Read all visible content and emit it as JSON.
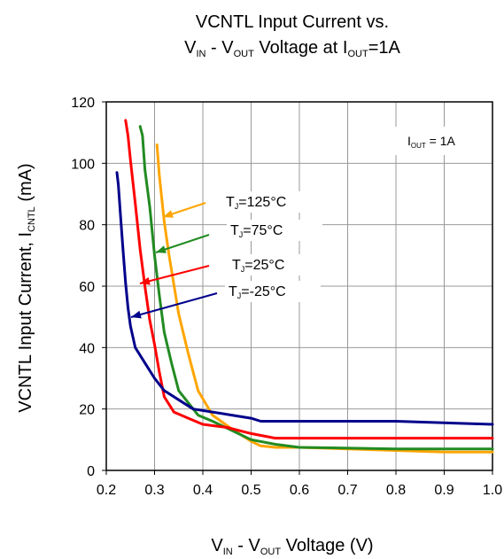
{
  "chart_data": {
    "type": "line",
    "title": {
      "line1": "VCNTL Input Current vs.",
      "line2": [
        {
          "t": "V"
        },
        {
          "t": "IN",
          "sub": true
        },
        {
          "t": " - V"
        },
        {
          "t": "OUT",
          "sub": true
        },
        {
          "t": " Voltage at I"
        },
        {
          "t": "OUT",
          "sub": true
        },
        {
          "t": "=1A"
        }
      ]
    },
    "xlabel": [
      {
        "t": "V"
      },
      {
        "t": "IN",
        "sub": true
      },
      {
        "t": " - V"
      },
      {
        "t": "OUT",
        "sub": true
      },
      {
        "t": " Voltage (V)"
      }
    ],
    "ylabel": [
      {
        "t": "VCNTL Input Current, I"
      },
      {
        "t": "CNTL",
        "sub": true
      },
      {
        "t": " (mA)"
      }
    ],
    "xlim": [
      0.2,
      1.0
    ],
    "ylim": [
      0,
      120
    ],
    "xticks": [
      "0.2",
      "0.3",
      "0.4",
      "0.5",
      "0.6",
      "0.7",
      "0.8",
      "0.9",
      "1.0"
    ],
    "yticks": [
      "0",
      "20",
      "40",
      "60",
      "80",
      "100",
      "120"
    ],
    "grid": true,
    "annotation_box": [
      {
        "t": "I"
      },
      {
        "t": "OUT",
        "sub": true
      },
      {
        "t": " = 1A"
      }
    ],
    "series": [
      {
        "name": [
          {
            "t": "T"
          },
          {
            "t": "J",
            "sub": true
          },
          {
            "t": "=125°C"
          }
        ],
        "color": "#FFA500",
        "x": [
          0.305,
          0.31,
          0.32,
          0.33,
          0.35,
          0.37,
          0.39,
          0.42,
          0.46,
          0.5,
          0.52,
          0.55,
          0.6,
          0.7,
          0.8,
          0.9,
          1.0
        ],
        "y": [
          106,
          96,
          81,
          70,
          51,
          38,
          26,
          18,
          13.5,
          9.5,
          8,
          7.5,
          7.5,
          7,
          6.5,
          6,
          6
        ]
      },
      {
        "name": [
          {
            "t": "T"
          },
          {
            "t": "J",
            "sub": true
          },
          {
            "t": "=75°C"
          }
        ],
        "color": "#228B22",
        "x": [
          0.27,
          0.275,
          0.28,
          0.29,
          0.3,
          0.31,
          0.32,
          0.335,
          0.35,
          0.37,
          0.39,
          0.42,
          0.46,
          0.5,
          0.55,
          0.6,
          0.8,
          1.0
        ],
        "y": [
          112,
          109,
          98,
          86,
          70,
          57,
          45,
          35,
          26,
          22,
          18,
          16,
          13,
          10,
          8.5,
          7.5,
          7,
          7
        ]
      },
      {
        "name": [
          {
            "t": "T"
          },
          {
            "t": "J",
            "sub": true
          },
          {
            "t": "=25°C"
          }
        ],
        "color": "#FF0000",
        "x": [
          0.24,
          0.245,
          0.25,
          0.26,
          0.27,
          0.28,
          0.29,
          0.3,
          0.31,
          0.32,
          0.34,
          0.37,
          0.4,
          0.45,
          0.5,
          0.55,
          0.6,
          0.8,
          1.0
        ],
        "y": [
          114,
          109,
          101,
          87,
          72,
          60,
          49,
          41,
          32,
          24,
          19,
          17,
          15,
          14,
          12,
          10.5,
          10.5,
          10.5,
          10.5
        ]
      },
      {
        "name": [
          {
            "t": "T"
          },
          {
            "t": "J",
            "sub": true
          },
          {
            "t": "=-25°C"
          }
        ],
        "color": "#00008B",
        "x": [
          0.222,
          0.225,
          0.23,
          0.235,
          0.24,
          0.245,
          0.25,
          0.26,
          0.28,
          0.3,
          0.32,
          0.35,
          0.38,
          0.42,
          0.46,
          0.5,
          0.52,
          0.6,
          0.8,
          1.0
        ],
        "y": [
          97,
          93,
          82,
          71,
          61,
          53,
          47,
          40,
          35,
          30,
          26,
          23,
          20,
          19,
          18,
          17,
          16,
          16,
          16,
          15
        ]
      }
    ]
  }
}
